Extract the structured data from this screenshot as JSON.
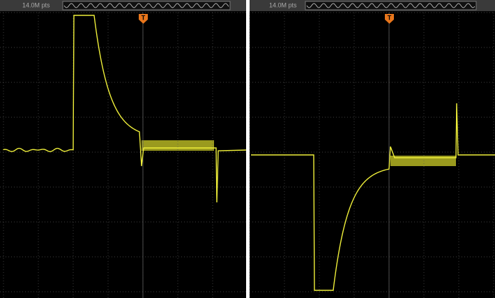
{
  "panels": [
    {
      "memory_depth": "14.0M pts",
      "trigger_label": "T"
    },
    {
      "memory_depth": "14.0M pts",
      "trigger_label": "T"
    }
  ]
}
